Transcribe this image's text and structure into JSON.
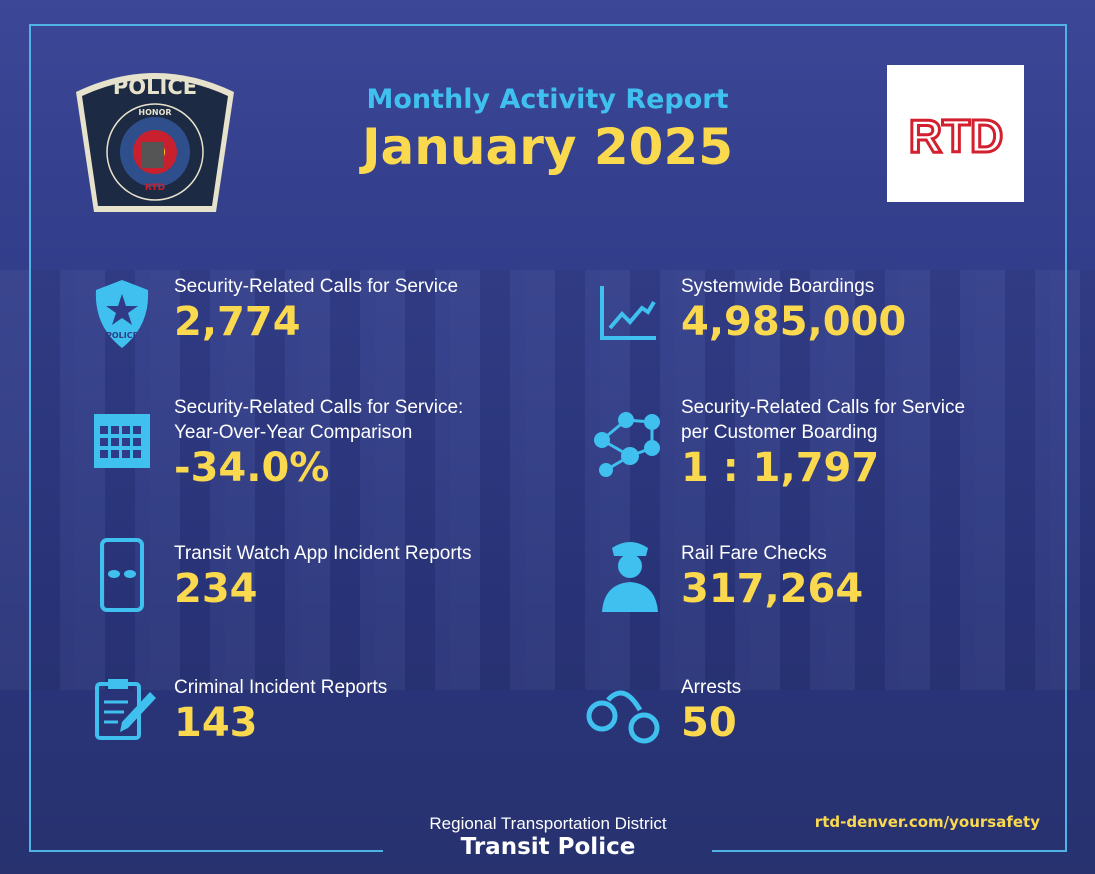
{
  "header": {
    "subtitle": "Monthly Activity Report",
    "title": "January 2025"
  },
  "logos": {
    "police_badge": "POLICE INTEGRITY HONOR RESPECT REGIONAL TRANSPORTATION DISTRICT RTD",
    "rtd": "RTD"
  },
  "stats": [
    {
      "label": "Security-Related Calls for Service",
      "value": "2,774",
      "icon": "police-badge-icon"
    },
    {
      "label": "Systemwide Boardings",
      "value": "4,985,000",
      "icon": "line-chart-icon"
    },
    {
      "label": "Security-Related Calls for Service:",
      "label2": "Year-Over-Year Comparison",
      "value": "-34.0%",
      "icon": "calendar-icon"
    },
    {
      "label": "Security-Related Calls for Service",
      "label2": "per Customer Boarding",
      "value": "1 : 1,797",
      "icon": "network-icon"
    },
    {
      "label": "Transit Watch App Incident Reports",
      "value": "234",
      "icon": "phone-eyes-icon"
    },
    {
      "label": "Rail Fare Checks",
      "value": "317,264",
      "icon": "officer-icon"
    },
    {
      "label": "Criminal Incident Reports",
      "value": "143",
      "icon": "clipboard-icon"
    },
    {
      "label": "Arrests",
      "value": "50",
      "icon": "handcuffs-icon"
    }
  ],
  "footer": {
    "org": "Regional Transportation District",
    "unit": "Transit Police",
    "url": "rtd-denver.com/yoursafety"
  },
  "colors": {
    "accent": "#3fc0ee",
    "highlight": "#fbd94f",
    "background": "#2f3b86",
    "rtd_red": "#d2202f"
  }
}
